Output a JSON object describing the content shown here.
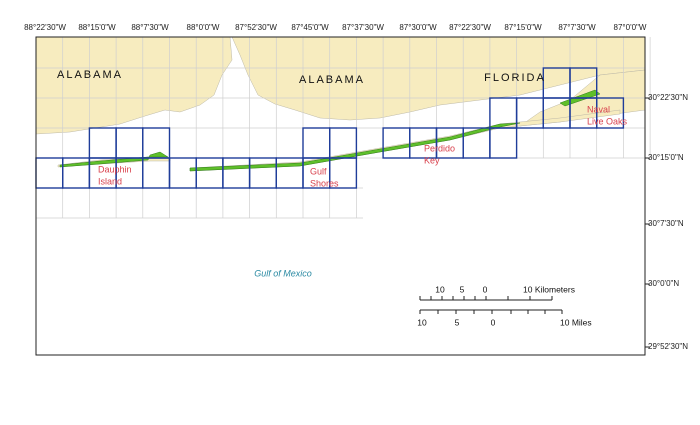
{
  "longitude_labels": [
    "88°22'30\"W",
    "88°15'0\"W",
    "88°7'30\"W",
    "88°0'0\"W",
    "87°52'30\"W",
    "87°45'0\"W",
    "87°37'30\"W",
    "87°30'0\"W",
    "87°22'30\"W",
    "87°15'0\"W",
    "87°7'30\"W",
    "87°0'0\"W"
  ],
  "latitude_labels": [
    "30°22'30\"N",
    "30°15'0\"N",
    "30°7'30\"N",
    "30°0'0\"N",
    "29°52'30\"N"
  ],
  "state_labels": [
    "ALABAMA",
    "ALABAMA",
    "FLORIDA"
  ],
  "places": [
    [
      "Dauphin",
      "Island"
    ],
    [
      "Gulf",
      "Shores"
    ],
    [
      "Perdido",
      "Key"
    ],
    [
      "Naval",
      "Live Oaks"
    ]
  ],
  "water_label": "Gulf of Mexico",
  "scale_bar": {
    "kilometers": [
      "10",
      "5",
      "0",
      "10 Kilometers"
    ],
    "miles": [
      "10",
      "5",
      "0",
      "10 Miles"
    ]
  }
}
